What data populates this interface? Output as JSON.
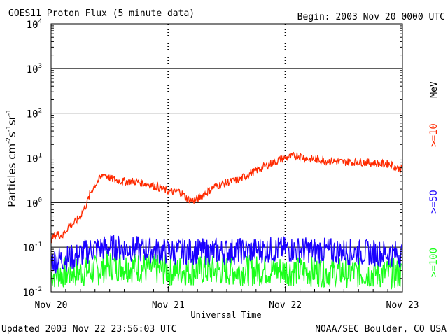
{
  "chart_data": {
    "type": "line",
    "title": "GOES11 Proton Flux (5 minute data)",
    "begin": "Begin: 2003 Nov 20 0000 UTC",
    "xlabel": "Universal Time",
    "ylabel": "Particles cm",
    "ylabel_sup1": "-2",
    "ylabel_mid1": "s",
    "ylabel_sup2": "-1",
    "ylabel_mid2": "sr",
    "ylabel_sup3": "-1",
    "yscale": "log",
    "ylim": [
      0.01,
      10000
    ],
    "xlim_days": [
      0,
      3
    ],
    "x_tick_labels": [
      "Nov 20",
      "Nov 21",
      "Nov 22",
      "Nov 23"
    ],
    "x_tick_days": [
      0,
      1,
      2,
      3
    ],
    "y_ticks": [
      {
        "base": "10",
        "exp": "4",
        "value": 10000
      },
      {
        "base": "10",
        "exp": "3",
        "value": 1000
      },
      {
        "base": "10",
        "exp": "2",
        "value": 100
      },
      {
        "base": "10",
        "exp": "1",
        "value": 10
      },
      {
        "base": "10",
        "exp": "0",
        "value": 1
      },
      {
        "base": "10",
        "exp": "-1",
        "value": 0.1
      },
      {
        "base": "10",
        "exp": "-2",
        "value": 0.01
      }
    ],
    "threshold_line": {
      "value": 10,
      "style": "dashed"
    },
    "legend_unit": "MeV",
    "series": [
      {
        "name": ">=10",
        "color": "#ff2a00",
        "points": [
          [
            0,
            0.15
          ],
          [
            0.05,
            0.2
          ],
          [
            0.1,
            0.18
          ],
          [
            0.15,
            0.3
          ],
          [
            0.2,
            0.35
          ],
          [
            0.25,
            0.5
          ],
          [
            0.3,
            0.9
          ],
          [
            0.35,
            2.0
          ],
          [
            0.4,
            3.0
          ],
          [
            0.45,
            4.5
          ],
          [
            0.5,
            3.5
          ],
          [
            0.55,
            3.2
          ],
          [
            0.6,
            3.0
          ],
          [
            0.7,
            3.0
          ],
          [
            0.8,
            2.7
          ],
          [
            0.9,
            2.3
          ],
          [
            0.95,
            2.0
          ],
          [
            1.0,
            1.8
          ],
          [
            1.05,
            1.7
          ],
          [
            1.1,
            1.8
          ],
          [
            1.15,
            1.3
          ],
          [
            1.2,
            1.1
          ],
          [
            1.25,
            1.2
          ],
          [
            1.3,
            1.5
          ],
          [
            1.4,
            2.3
          ],
          [
            1.5,
            2.8
          ],
          [
            1.6,
            3.2
          ],
          [
            1.7,
            4.5
          ],
          [
            1.8,
            6.0
          ],
          [
            1.9,
            8.0
          ],
          [
            2.0,
            10.0
          ],
          [
            2.05,
            10.5
          ],
          [
            2.1,
            11.5
          ],
          [
            2.2,
            9.5
          ],
          [
            2.3,
            9.0
          ],
          [
            2.4,
            8.5
          ],
          [
            2.5,
            8.0
          ],
          [
            2.6,
            8.2
          ],
          [
            2.7,
            8.0
          ],
          [
            2.8,
            7.5
          ],
          [
            2.9,
            7.2
          ],
          [
            2.95,
            6.0
          ],
          [
            3.0,
            5.5
          ]
        ],
        "noise": 0.09
      },
      {
        "name": ">=50",
        "color": "#1a00ff",
        "points": [
          [
            0,
            0.05
          ],
          [
            0.2,
            0.06
          ],
          [
            0.35,
            0.09
          ],
          [
            0.5,
            0.1
          ],
          [
            1.0,
            0.08
          ],
          [
            1.5,
            0.08
          ],
          [
            2.0,
            0.09
          ],
          [
            2.5,
            0.08
          ],
          [
            3.0,
            0.07
          ]
        ],
        "noise": 0.3
      },
      {
        "name": ">=100",
        "color": "#1aff1a",
        "points": [
          [
            0,
            0.025
          ],
          [
            0.4,
            0.03
          ],
          [
            0.5,
            0.04
          ],
          [
            1.0,
            0.03
          ],
          [
            2.0,
            0.03
          ],
          [
            3.0,
            0.025
          ]
        ],
        "noise": 0.35
      }
    ],
    "legend": [
      {
        "label": ">=10",
        "color": "#ff2a00"
      },
      {
        "label": ">=50",
        "color": "#1a00ff"
      },
      {
        "label": ">=100",
        "color": "#1aff1a"
      }
    ]
  },
  "footer": {
    "updated": "Updated 2003 Nov 22 23:56:03 UTC",
    "credit": "NOAA/SEC Boulder, CO USA"
  }
}
